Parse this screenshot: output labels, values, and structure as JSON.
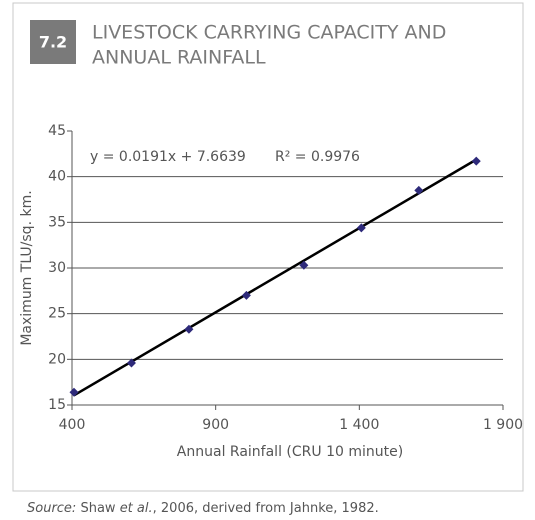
{
  "badge": "7.2",
  "title_lines": [
    "LIVESTOCK CARRYING CAPACITY AND",
    "ANNUAL RAINFALL"
  ],
  "chart_data": {
    "type": "scatter",
    "x_label": "Annual Rainfall (CRU 10 minute)",
    "y_label": "Maximum TLU/sq. km.",
    "annotation": [
      "y = 0.0191x + 7.6639",
      "R² = 0.9976"
    ],
    "x": [
      400,
      600,
      800,
      1000,
      1200,
      1400,
      1600,
      1800
    ],
    "values": [
      16.4,
      19.6,
      23.3,
      27.0,
      30.3,
      34.4,
      38.5,
      41.7
    ],
    "color": "#2e2a7a",
    "trendline": true,
    "xlim": [
      400,
      1900
    ],
    "xticks": [
      400,
      900,
      {
        "value": 1400,
        "label": "1 400"
      },
      {
        "value": 1900,
        "label": "1 900"
      }
    ],
    "ylim": [
      15,
      45
    ],
    "yticks": [
      15,
      20,
      25,
      30,
      35,
      40,
      45
    ],
    "grid": true
  },
  "source": [
    "Source:",
    " Shaw ",
    "et al.",
    ", 2006, derived from Jahnke, 1982."
  ]
}
